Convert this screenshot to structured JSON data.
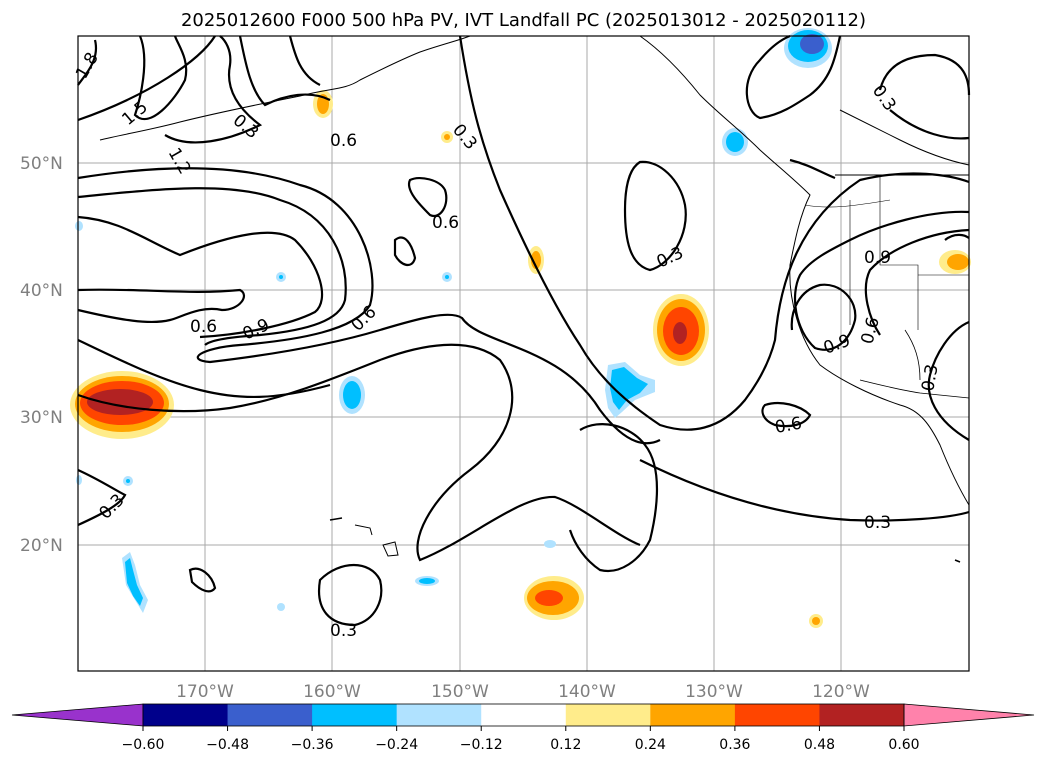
{
  "title": "2025012600 F000 500 hPa PV, IVT Landfall PC (2025013012 - 2025020112)",
  "lat_labels": [
    "50°N",
    "40°N",
    "30°N",
    "20°N"
  ],
  "lon_labels": [
    "170°W",
    "160°W",
    "150°W",
    "140°W",
    "130°W",
    "120°W"
  ],
  "contour_labels": [
    "1.8",
    "1.5",
    "1.2",
    "0.3",
    "0.6",
    "0.3",
    "0.6",
    "0.3",
    "0.6",
    "0.9",
    "0.6",
    "0.9",
    "0.6",
    "0.9",
    "0.3",
    "0.6",
    "0.3",
    "0.3",
    "0.3"
  ],
  "colorbar": {
    "ticks": [
      "−0.60",
      "−0.48",
      "−0.36",
      "−0.24",
      "−0.12",
      "0.12",
      "0.24",
      "0.36",
      "0.48",
      "0.60"
    ],
    "colors": [
      "#9932cc",
      "#00008b",
      "#3a5fcd",
      "#00bfff",
      "#b0e2ff",
      "#ffffff",
      "#ffec8b",
      "#ffa500",
      "#ff4500",
      "#b22222",
      "#ff82ab"
    ]
  },
  "colors": {
    "pv_contour": "#000000",
    "coastline": "#000000",
    "grid": "#a9a9a9",
    "axis_label": "#7f7f7f"
  }
}
